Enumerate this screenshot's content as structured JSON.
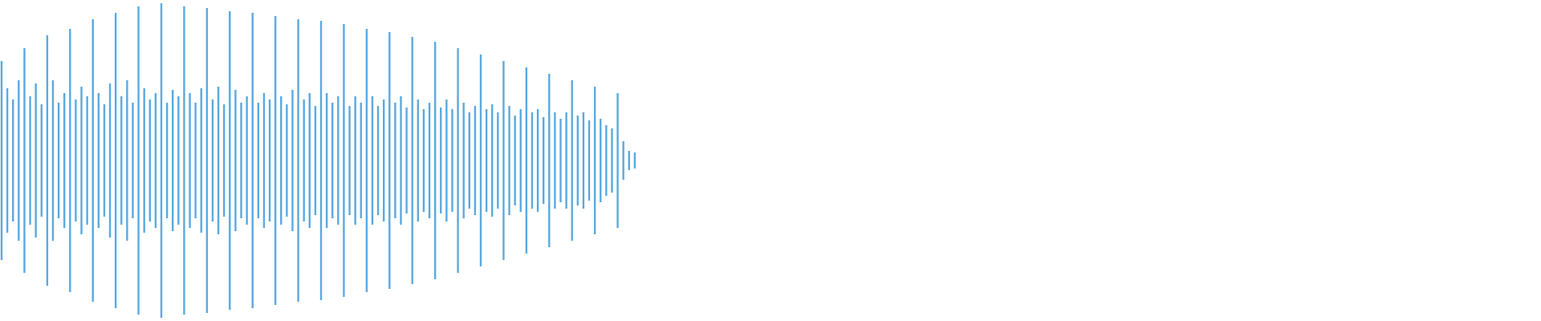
{
  "chart_data": {
    "type": "waveform",
    "color": "#5aa9e0",
    "ylim": [
      -1,
      1
    ],
    "values": [
      0.62,
      0.45,
      0.38,
      0.5,
      0.7,
      0.4,
      0.48,
      0.35,
      0.78,
      0.5,
      0.36,
      0.42,
      0.82,
      0.38,
      0.46,
      0.4,
      0.88,
      0.42,
      0.35,
      0.48,
      0.92,
      0.4,
      0.5,
      0.36,
      0.96,
      0.45,
      0.38,
      0.42,
      0.98,
      0.36,
      0.44,
      0.4,
      0.96,
      0.42,
      0.36,
      0.45,
      0.95,
      0.38,
      0.46,
      0.35,
      0.93,
      0.44,
      0.36,
      0.4,
      0.92,
      0.36,
      0.42,
      0.38,
      0.9,
      0.4,
      0.35,
      0.44,
      0.88,
      0.38,
      0.42,
      0.34,
      0.87,
      0.42,
      0.36,
      0.4,
      0.85,
      0.34,
      0.4,
      0.36,
      0.82,
      0.4,
      0.34,
      0.38,
      0.8,
      0.36,
      0.4,
      0.33,
      0.77,
      0.38,
      0.32,
      0.36,
      0.74,
      0.33,
      0.38,
      0.32,
      0.7,
      0.36,
      0.3,
      0.34,
      0.66,
      0.32,
      0.35,
      0.3,
      0.62,
      0.34,
      0.28,
      0.32,
      0.58,
      0.3,
      0.32,
      0.27,
      0.54,
      0.3,
      0.26,
      0.3,
      0.5,
      0.28,
      0.3,
      0.25,
      0.46,
      0.26,
      0.22,
      0.2,
      0.42,
      0.12,
      0.06,
      0.05
    ]
  }
}
